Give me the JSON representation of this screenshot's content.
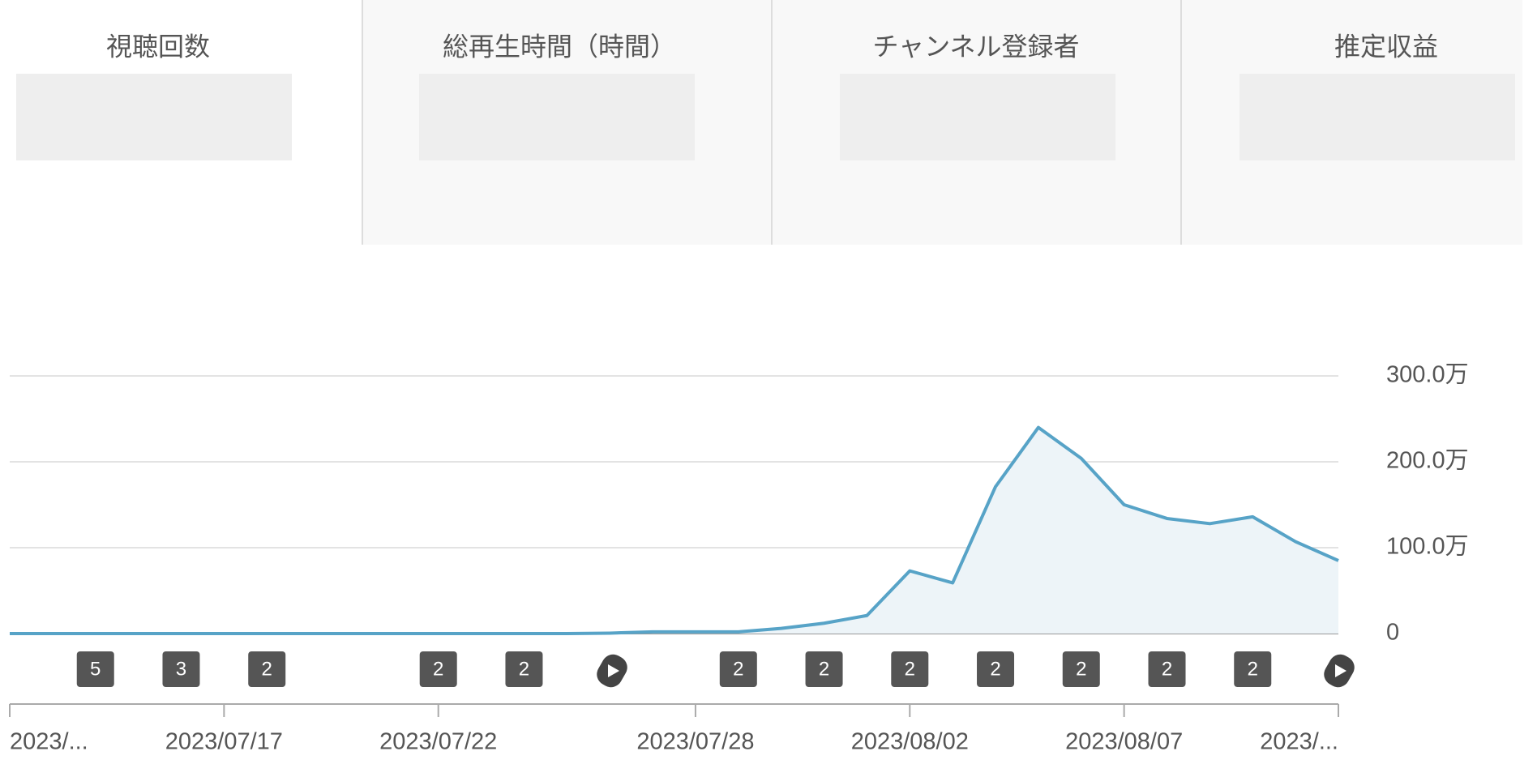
{
  "tabs": [
    "視聴回数",
    "総再生時間（時間）",
    "チャンネル登録者",
    "推定収益"
  ],
  "chart_data": {
    "type": "line",
    "color": "#57a3c7",
    "area_color": "#edf4f8",
    "categories": [
      "2023/...",
      null,
      null,
      null,
      null,
      "2023/07/17",
      null,
      null,
      null,
      null,
      "2023/07/22",
      null,
      null,
      null,
      null,
      null,
      "2023/07/28",
      null,
      null,
      null,
      null,
      "2023/08/02",
      null,
      null,
      null,
      null,
      "2023/08/07",
      null,
      null,
      null,
      null,
      "2023/..."
    ],
    "values": [
      0,
      0,
      0,
      0,
      0,
      0,
      0,
      0,
      0,
      0,
      0,
      0,
      0,
      0,
      0.5,
      2,
      2,
      2,
      6,
      12,
      21,
      73,
      59,
      171,
      240,
      204,
      150,
      134,
      128,
      136,
      107,
      85
    ],
    "ylim": [
      0,
      300
    ],
    "yticks": [
      0,
      {
        "value": 100,
        "label": "100.0万"
      },
      {
        "value": 200,
        "label": "200.0万"
      },
      {
        "value": 300,
        "label": "300.0万"
      }
    ],
    "grid": true,
    "markers": [
      null,
      null,
      "5",
      null,
      "3",
      null,
      "2",
      null,
      null,
      null,
      "2",
      null,
      "2",
      null,
      null,
      null,
      null,
      "2",
      null,
      "2",
      null,
      "2",
      null,
      "2",
      null,
      "2",
      null,
      "2",
      null,
      "2",
      null,
      null
    ]
  }
}
